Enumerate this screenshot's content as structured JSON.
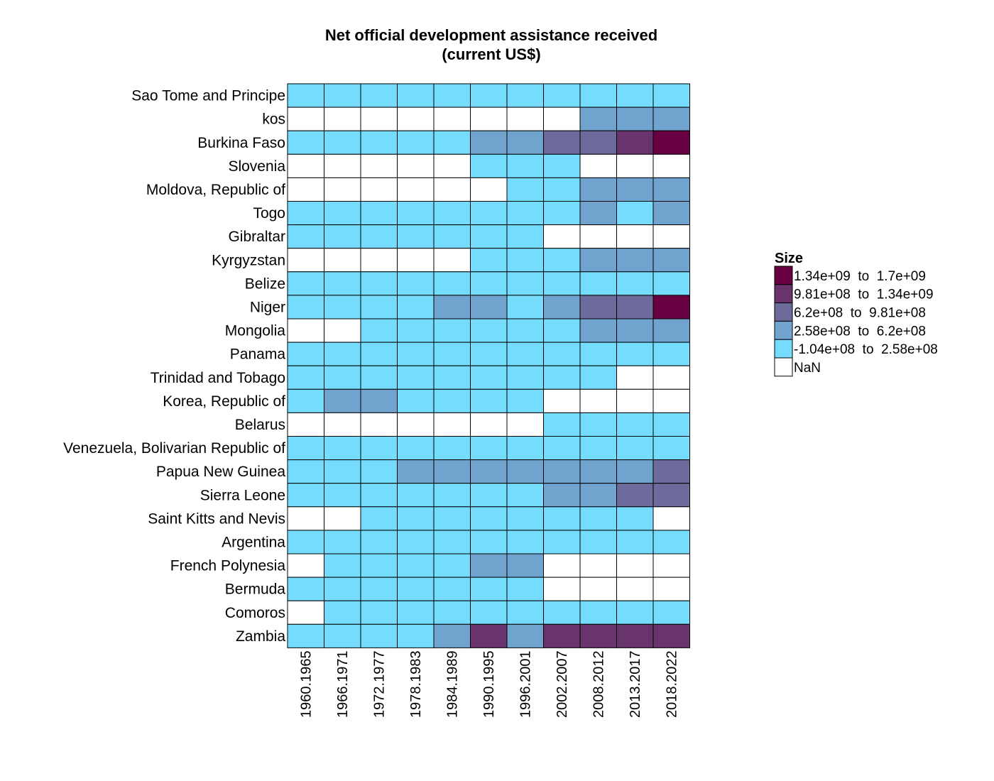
{
  "chart_data": {
    "type": "heatmap",
    "title_lines": [
      "Net official development assistance received",
      "(current US$)"
    ],
    "xlabel": "",
    "ylabel": "",
    "columns": [
      "1960.1965",
      "1966.1971",
      "1972.1977",
      "1978.1983",
      "1984.1989",
      "1990.1995",
      "1996.2001",
      "2002.2007",
      "2008.2012",
      "2013.2017",
      "2018.2022"
    ],
    "rows": [
      "Sao Tome and Principe",
      "kos",
      "Burkina Faso",
      "Slovenia",
      "Moldova, Republic of",
      "Togo",
      "Gibraltar",
      "Kyrgyzstan",
      "Belize",
      "Niger",
      "Mongolia",
      "Panama",
      "Trinidad and Tobago",
      "Korea, Republic of",
      "Belarus",
      "Venezuela, Bolivarian Republic of",
      "Papua New Guinea",
      "Sierra Leone",
      "Saint Kitts and Nevis",
      "Argentina",
      "French Polynesia",
      "Bermuda",
      "Comoros",
      "Zambia"
    ],
    "legend": {
      "title": "Size",
      "position": "right",
      "bins": [
        {
          "label": "1.34e+09  to  1.7e+09",
          "color": "#680042"
        },
        {
          "label": "9.81e+08  to  1.34e+09",
          "color": "#69336d"
        },
        {
          "label": "6.2e+08  to  9.81e+08",
          "color": "#6c6b9c"
        },
        {
          "label": "2.58e+08  to  6.2e+08",
          "color": "#70a4cf"
        },
        {
          "label": "-1.04e+08  to  2.58e+08",
          "color": "#76dcfe"
        },
        {
          "label": "NaN",
          "color": "#ffffff"
        }
      ]
    },
    "bin_index_legend": "cell value = index into legend.bins (0 = highest range, 4 = lowest range, 5 = NaN)",
    "cells": [
      [
        4,
        4,
        4,
        4,
        4,
        4,
        4,
        4,
        4,
        4,
        4
      ],
      [
        5,
        5,
        5,
        5,
        5,
        5,
        5,
        5,
        3,
        3,
        3
      ],
      [
        4,
        4,
        4,
        4,
        4,
        3,
        3,
        2,
        2,
        1,
        0
      ],
      [
        5,
        5,
        5,
        5,
        5,
        4,
        4,
        4,
        5,
        5,
        5
      ],
      [
        5,
        5,
        5,
        5,
        5,
        5,
        4,
        4,
        3,
        3,
        3
      ],
      [
        4,
        4,
        4,
        4,
        4,
        4,
        4,
        4,
        3,
        4,
        3
      ],
      [
        4,
        4,
        4,
        4,
        4,
        4,
        4,
        5,
        5,
        5,
        5
      ],
      [
        5,
        5,
        5,
        5,
        5,
        4,
        4,
        4,
        3,
        3,
        3
      ],
      [
        4,
        4,
        4,
        4,
        4,
        4,
        4,
        4,
        4,
        4,
        4
      ],
      [
        4,
        4,
        4,
        4,
        3,
        3,
        4,
        3,
        2,
        2,
        0
      ],
      [
        5,
        5,
        4,
        4,
        4,
        4,
        4,
        4,
        3,
        3,
        3
      ],
      [
        4,
        4,
        4,
        4,
        4,
        4,
        4,
        4,
        4,
        4,
        4
      ],
      [
        4,
        4,
        4,
        4,
        4,
        4,
        4,
        4,
        4,
        5,
        5
      ],
      [
        4,
        3,
        3,
        4,
        4,
        4,
        4,
        5,
        5,
        5,
        5
      ],
      [
        5,
        5,
        5,
        5,
        5,
        5,
        5,
        4,
        4,
        4,
        4
      ],
      [
        4,
        4,
        4,
        4,
        4,
        4,
        4,
        4,
        4,
        4,
        4
      ],
      [
        4,
        4,
        4,
        3,
        3,
        3,
        3,
        3,
        3,
        3,
        2
      ],
      [
        4,
        4,
        4,
        4,
        4,
        4,
        4,
        3,
        3,
        2,
        2
      ],
      [
        5,
        5,
        4,
        4,
        4,
        4,
        4,
        4,
        4,
        4,
        5
      ],
      [
        4,
        4,
        4,
        4,
        4,
        4,
        4,
        4,
        4,
        4,
        4
      ],
      [
        5,
        4,
        4,
        4,
        4,
        3,
        3,
        5,
        5,
        5,
        5
      ],
      [
        4,
        4,
        4,
        4,
        4,
        4,
        4,
        5,
        5,
        5,
        5
      ],
      [
        5,
        4,
        4,
        4,
        4,
        4,
        4,
        4,
        4,
        4,
        4
      ],
      [
        4,
        4,
        4,
        4,
        3,
        1,
        3,
        1,
        1,
        1,
        1
      ]
    ]
  }
}
